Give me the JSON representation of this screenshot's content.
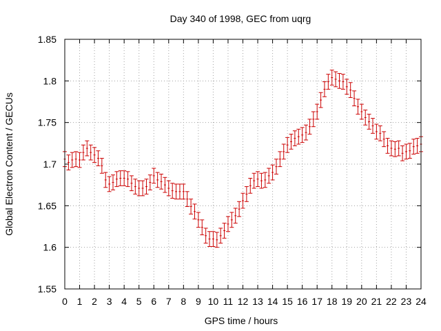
{
  "chart_data": {
    "type": "scatter",
    "title": "Day 340 of 1998, GEC from uqrg",
    "xlabel": "GPS time / hours",
    "ylabel": "Global Electron Content / GECUs",
    "xlim": [
      0,
      24
    ],
    "ylim": [
      1.55,
      1.85
    ],
    "x_ticks": [
      "0",
      "1",
      "2",
      "3",
      "4",
      "5",
      "6",
      "7",
      "8",
      "9",
      "10",
      "11",
      "12",
      "13",
      "14",
      "15",
      "16",
      "17",
      "18",
      "19",
      "20",
      "21",
      "22",
      "23",
      "24"
    ],
    "y_ticks": [
      "1.55",
      "1.6",
      "1.65",
      "1.7",
      "1.75",
      "1.8",
      "1.85"
    ],
    "grid": true,
    "error_bar_half_height": 0.009,
    "series": [
      {
        "color": "#cc0000",
        "x": [
          0,
          0.25,
          0.5,
          0.75,
          1,
          1.25,
          1.5,
          1.75,
          2,
          2.25,
          2.5,
          2.75,
          3,
          3.25,
          3.5,
          3.75,
          4,
          4.25,
          4.5,
          4.75,
          5,
          5.25,
          5.5,
          5.75,
          6,
          6.25,
          6.5,
          6.75,
          7,
          7.25,
          7.5,
          7.75,
          8,
          8.25,
          8.5,
          8.75,
          9,
          9.25,
          9.5,
          9.75,
          10,
          10.25,
          10.5,
          10.75,
          11,
          11.25,
          11.5,
          11.75,
          12,
          12.25,
          12.5,
          12.75,
          13,
          13.25,
          13.5,
          13.75,
          14,
          14.25,
          14.5,
          14.75,
          15,
          15.25,
          15.5,
          15.75,
          16,
          16.25,
          16.5,
          16.75,
          17,
          17.25,
          17.5,
          17.75,
          18,
          18.25,
          18.5,
          18.75,
          19,
          19.25,
          19.5,
          19.75,
          20,
          20.25,
          20.5,
          20.75,
          21,
          21.25,
          21.5,
          21.75,
          22,
          22.25,
          22.5,
          22.75,
          23,
          23.25,
          23.5,
          23.75,
          24
        ],
        "y": [
          1.706,
          1.702,
          1.705,
          1.706,
          1.705,
          1.714,
          1.719,
          1.714,
          1.711,
          1.707,
          1.698,
          1.681,
          1.676,
          1.678,
          1.682,
          1.683,
          1.683,
          1.682,
          1.677,
          1.673,
          1.671,
          1.671,
          1.673,
          1.678,
          1.686,
          1.681,
          1.679,
          1.675,
          1.671,
          1.668,
          1.667,
          1.667,
          1.667,
          1.658,
          1.649,
          1.643,
          1.633,
          1.624,
          1.614,
          1.61,
          1.61,
          1.609,
          1.614,
          1.62,
          1.628,
          1.633,
          1.638,
          1.646,
          1.656,
          1.664,
          1.674,
          1.68,
          1.682,
          1.68,
          1.681,
          1.686,
          1.69,
          1.697,
          1.706,
          1.715,
          1.723,
          1.727,
          1.731,
          1.733,
          1.735,
          1.738,
          1.745,
          1.754,
          1.763,
          1.777,
          1.79,
          1.799,
          1.804,
          1.802,
          1.8,
          1.799,
          1.793,
          1.789,
          1.779,
          1.769,
          1.763,
          1.756,
          1.751,
          1.746,
          1.739,
          1.737,
          1.73,
          1.722,
          1.719,
          1.718,
          1.719,
          1.713,
          1.715,
          1.716,
          1.721,
          1.722,
          1.724
        ]
      }
    ]
  }
}
